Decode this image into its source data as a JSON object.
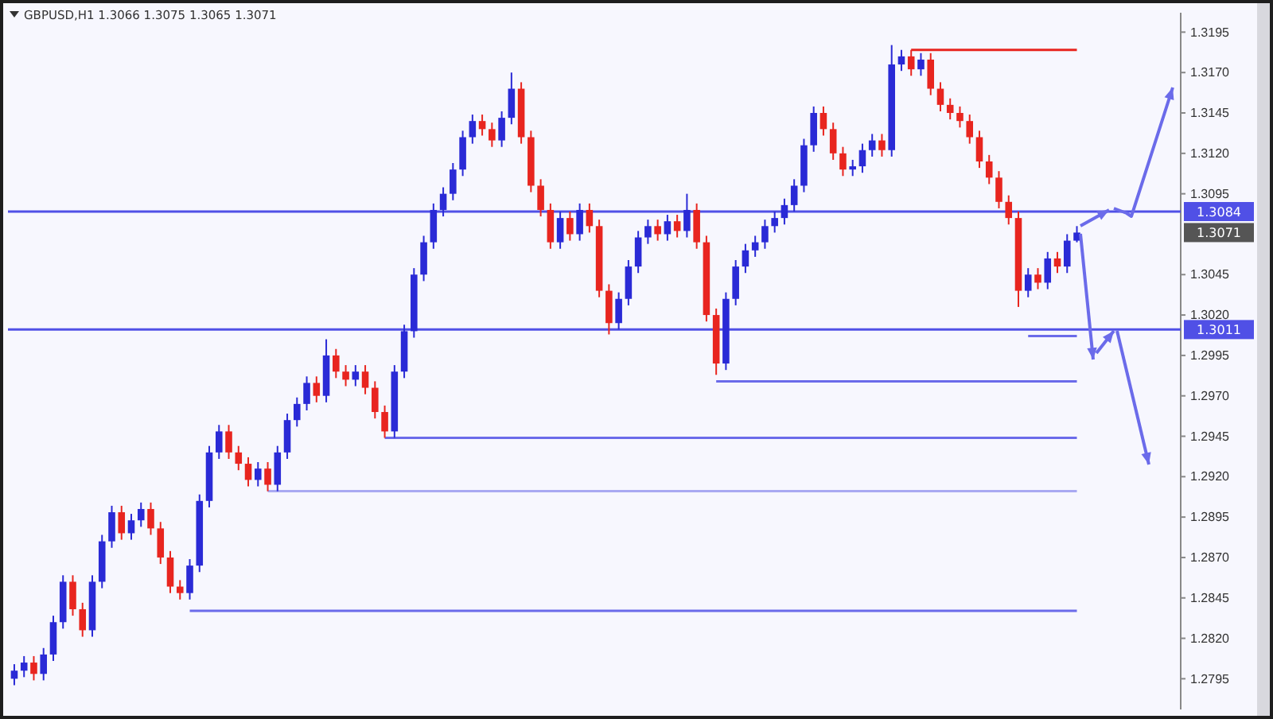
{
  "chart_data": {
    "type": "candlestick",
    "title": "GBPUSD,H1  1.3066 1.3075 1.3065 1.3071",
    "categories": [
      null,
      null,
      null,
      null,
      null,
      null,
      null,
      null,
      null,
      null,
      null,
      null,
      null,
      null,
      null,
      null,
      null,
      null,
      null,
      null,
      null,
      null,
      null,
      null,
      null,
      null,
      null,
      null,
      null,
      null,
      null,
      null,
      null,
      null,
      null,
      null,
      null,
      null,
      null,
      null,
      null,
      null,
      null,
      null,
      null,
      null,
      null,
      null,
      null,
      null,
      null,
      null,
      null,
      null,
      null,
      null,
      null,
      null,
      null,
      null,
      null,
      null,
      null,
      null,
      null,
      null,
      null,
      null,
      null,
      null,
      null,
      null,
      null,
      null,
      null,
      null,
      null,
      null,
      null,
      null,
      null,
      null,
      null,
      null,
      null,
      null,
      null,
      null,
      null,
      null,
      null,
      null,
      null,
      null,
      null,
      null,
      null,
      null,
      null,
      null,
      null,
      null,
      null,
      null,
      null,
      null,
      null,
      null,
      null,
      null,
      null,
      null,
      null,
      null,
      null,
      null,
      null,
      null,
      null,
      null
    ],
    "ohlc": [
      [
        1.2795,
        1.2804,
        1.2791,
        1.28
      ],
      [
        1.28,
        1.2809,
        1.2796,
        1.2805
      ],
      [
        1.2805,
        1.2809,
        1.2794,
        1.2798
      ],
      [
        1.2798,
        1.2814,
        1.2794,
        1.281
      ],
      [
        1.281,
        1.2834,
        1.2806,
        1.283
      ],
      [
        1.283,
        1.2859,
        1.2826,
        1.2855
      ],
      [
        1.2855,
        1.2859,
        1.2834,
        1.2838
      ],
      [
        1.2838,
        1.2842,
        1.2821,
        1.2825
      ],
      [
        1.2825,
        1.2859,
        1.2821,
        1.2855
      ],
      [
        1.2855,
        1.2884,
        1.2851,
        1.288
      ],
      [
        1.288,
        1.2902,
        1.2876,
        1.2898
      ],
      [
        1.2898,
        1.2902,
        1.2881,
        1.2885
      ],
      [
        1.2885,
        1.2897,
        1.2881,
        1.2893
      ],
      [
        1.2893,
        1.2904,
        1.2889,
        1.29
      ],
      [
        1.29,
        1.2904,
        1.2884,
        1.2888
      ],
      [
        1.2888,
        1.2892,
        1.2866,
        1.287
      ],
      [
        1.287,
        1.2874,
        1.2848,
        1.2852
      ],
      [
        1.2852,
        1.2856,
        1.2844,
        1.2848
      ],
      [
        1.2848,
        1.2869,
        1.2844,
        1.2865
      ],
      [
        1.2865,
        1.2909,
        1.2861,
        1.2905
      ],
      [
        1.2905,
        1.2939,
        1.2901,
        1.2935
      ],
      [
        1.2935,
        1.2952,
        1.2931,
        1.2948
      ],
      [
        1.2948,
        1.2952,
        1.2931,
        1.2935
      ],
      [
        1.2935,
        1.2939,
        1.2924,
        1.2928
      ],
      [
        1.2928,
        1.2932,
        1.2914,
        1.2918
      ],
      [
        1.2918,
        1.2929,
        1.2914,
        1.2925
      ],
      [
        1.2925,
        1.2929,
        1.2911,
        1.2915
      ],
      [
        1.2915,
        1.2939,
        1.2911,
        1.2935
      ],
      [
        1.2935,
        1.2959,
        1.2931,
        1.2955
      ],
      [
        1.2955,
        1.2969,
        1.2951,
        1.2965
      ],
      [
        1.2965,
        1.2982,
        1.2961,
        1.2978
      ],
      [
        1.2978,
        1.2982,
        1.2966,
        1.297
      ],
      [
        1.297,
        1.3005,
        1.2966,
        1.2995
      ],
      [
        1.2995,
        1.2999,
        1.2981,
        1.2985
      ],
      [
        1.2985,
        1.2989,
        1.2976,
        1.298
      ],
      [
        1.298,
        1.2989,
        1.2976,
        1.2985
      ],
      [
        1.2985,
        1.2989,
        1.2971,
        1.2975
      ],
      [
        1.2975,
        1.2979,
        1.2956,
        1.296
      ],
      [
        1.296,
        1.2964,
        1.2944,
        1.2948
      ],
      [
        1.2948,
        1.2989,
        1.2944,
        1.2985
      ],
      [
        1.2985,
        1.3014,
        1.2981,
        1.301
      ],
      [
        1.301,
        1.3049,
        1.3006,
        1.3045
      ],
      [
        1.3045,
        1.3069,
        1.3041,
        1.3065
      ],
      [
        1.3065,
        1.3089,
        1.3061,
        1.3085
      ],
      [
        1.3085,
        1.3099,
        1.3081,
        1.3095
      ],
      [
        1.3095,
        1.3114,
        1.3091,
        1.311
      ],
      [
        1.311,
        1.3134,
        1.3106,
        1.313
      ],
      [
        1.313,
        1.3144,
        1.3126,
        1.314
      ],
      [
        1.314,
        1.3144,
        1.3131,
        1.3135
      ],
      [
        1.3135,
        1.3139,
        1.3124,
        1.3128
      ],
      [
        1.3128,
        1.3146,
        1.3124,
        1.3142
      ],
      [
        1.3142,
        1.317,
        1.3138,
        1.316
      ],
      [
        1.316,
        1.3164,
        1.3126,
        1.313
      ],
      [
        1.313,
        1.3134,
        1.3096,
        1.31
      ],
      [
        1.31,
        1.3104,
        1.3081,
        1.3085
      ],
      [
        1.3085,
        1.3089,
        1.3061,
        1.3065
      ],
      [
        1.3065,
        1.3084,
        1.3061,
        1.308
      ],
      [
        1.308,
        1.3084,
        1.3066,
        1.307
      ],
      [
        1.307,
        1.3089,
        1.3066,
        1.3085
      ],
      [
        1.3085,
        1.3089,
        1.3071,
        1.3075
      ],
      [
        1.3075,
        1.3079,
        1.3031,
        1.3035
      ],
      [
        1.3035,
        1.3039,
        1.3008,
        1.3015
      ],
      [
        1.3015,
        1.3034,
        1.3011,
        1.303
      ],
      [
        1.303,
        1.3054,
        1.3026,
        1.305
      ],
      [
        1.305,
        1.3072,
        1.3046,
        1.3068
      ],
      [
        1.3068,
        1.3079,
        1.3064,
        1.3075
      ],
      [
        1.3075,
        1.3079,
        1.3066,
        1.307
      ],
      [
        1.307,
        1.3082,
        1.3066,
        1.3078
      ],
      [
        1.3078,
        1.3082,
        1.3068,
        1.3072
      ],
      [
        1.3072,
        1.3095,
        1.3068,
        1.3085
      ],
      [
        1.3085,
        1.3089,
        1.3061,
        1.3065
      ],
      [
        1.3065,
        1.3069,
        1.3016,
        1.302
      ],
      [
        1.302,
        1.3024,
        1.2983,
        1.299
      ],
      [
        1.299,
        1.3034,
        1.2986,
        1.303
      ],
      [
        1.303,
        1.3054,
        1.3026,
        1.305
      ],
      [
        1.305,
        1.3064,
        1.3046,
        1.306
      ],
      [
        1.306,
        1.3069,
        1.3056,
        1.3065
      ],
      [
        1.3065,
        1.3079,
        1.3061,
        1.3075
      ],
      [
        1.3075,
        1.3084,
        1.3071,
        1.308
      ],
      [
        1.308,
        1.3092,
        1.3076,
        1.3088
      ],
      [
        1.3088,
        1.3104,
        1.3084,
        1.31
      ],
      [
        1.31,
        1.3129,
        1.3096,
        1.3125
      ],
      [
        1.3125,
        1.3149,
        1.3121,
        1.3145
      ],
      [
        1.3145,
        1.3149,
        1.3131,
        1.3135
      ],
      [
        1.3135,
        1.3139,
        1.3116,
        1.312
      ],
      [
        1.312,
        1.3124,
        1.3106,
        1.311
      ],
      [
        1.311,
        1.3116,
        1.3106,
        1.3112
      ],
      [
        1.3112,
        1.3126,
        1.3108,
        1.3122
      ],
      [
        1.3122,
        1.3132,
        1.3118,
        1.3128
      ],
      [
        1.3128,
        1.3132,
        1.3118,
        1.3122
      ],
      [
        1.3122,
        1.3187,
        1.3118,
        1.3175
      ],
      [
        1.3175,
        1.3184,
        1.3171,
        1.318
      ],
      [
        1.318,
        1.3184,
        1.3168,
        1.3172
      ],
      [
        1.3172,
        1.3182,
        1.3168,
        1.3178
      ],
      [
        1.3178,
        1.3182,
        1.3156,
        1.316
      ],
      [
        1.316,
        1.3164,
        1.3146,
        1.315
      ],
      [
        1.315,
        1.3154,
        1.3141,
        1.3145
      ],
      [
        1.3145,
        1.3149,
        1.3136,
        1.314
      ],
      [
        1.314,
        1.3144,
        1.3126,
        1.313
      ],
      [
        1.313,
        1.3134,
        1.3111,
        1.3115
      ],
      [
        1.3115,
        1.3119,
        1.3101,
        1.3105
      ],
      [
        1.3105,
        1.3109,
        1.3086,
        1.309
      ],
      [
        1.309,
        1.3094,
        1.3076,
        1.308
      ],
      [
        1.308,
        1.3084,
        1.3025,
        1.3035
      ],
      [
        1.3035,
        1.3049,
        1.3031,
        1.3045
      ],
      [
        1.3045,
        1.3049,
        1.3036,
        1.304
      ],
      [
        1.304,
        1.3059,
        1.3036,
        1.3055
      ],
      [
        1.3055,
        1.3059,
        1.3046,
        1.305
      ],
      [
        1.305,
        1.307,
        1.3046,
        1.3066
      ],
      [
        1.3066,
        1.3075,
        1.3065,
        1.3071
      ],
      null,
      null,
      null,
      null,
      null,
      null,
      null,
      null,
      null,
      null
    ],
    "colors": [
      "#2a2ad6",
      "#2a2ad6",
      "#e8251f",
      "#2a2ad6",
      "#2a2ad6",
      "#2a2ad6",
      "#e8251f",
      "#e8251f",
      "#2a2ad6",
      "#2a2ad6",
      "#2a2ad6",
      "#e8251f",
      "#2a2ad6",
      "#2a2ad6",
      "#e8251f",
      "#e8251f",
      "#e8251f",
      "#e8251f",
      "#2a2ad6",
      "#2a2ad6",
      "#2a2ad6",
      "#2a2ad6",
      "#e8251f",
      "#e8251f",
      "#e8251f",
      "#2a2ad6",
      "#e8251f",
      "#2a2ad6",
      "#2a2ad6",
      "#2a2ad6",
      "#2a2ad6",
      "#e8251f",
      "#2a2ad6",
      "#e8251f",
      "#e8251f",
      "#2a2ad6",
      "#e8251f",
      "#e8251f",
      "#e8251f",
      "#2a2ad6",
      "#2a2ad6",
      "#2a2ad6",
      "#2a2ad6",
      "#2a2ad6",
      "#2a2ad6",
      "#2a2ad6",
      "#2a2ad6",
      "#2a2ad6",
      "#e8251f",
      "#e8251f",
      "#2a2ad6",
      "#2a2ad6",
      "#e8251f",
      "#e8251f",
      "#e8251f",
      "#e8251f",
      "#2a2ad6",
      "#e8251f",
      "#2a2ad6",
      "#e8251f",
      "#e8251f",
      "#e8251f",
      "#2a2ad6",
      "#2a2ad6",
      "#2a2ad6",
      "#2a2ad6",
      "#e8251f",
      "#2a2ad6",
      "#e8251f",
      "#2a2ad6",
      "#e8251f",
      "#e8251f",
      "#e8251f",
      "#2a2ad6",
      "#2a2ad6",
      "#2a2ad6",
      "#2a2ad6",
      "#2a2ad6",
      "#2a2ad6",
      "#2a2ad6",
      "#2a2ad6",
      "#2a2ad6",
      "#2a2ad6",
      "#e8251f",
      "#e8251f",
      "#e8251f",
      "#2a2ad6",
      "#2a2ad6",
      "#2a2ad6",
      "#e8251f",
      "#2a2ad6",
      "#2a2ad6",
      "#e8251f",
      "#2a2ad6",
      "#e8251f",
      "#e8251f",
      "#e8251f",
      "#e8251f",
      "#e8251f",
      "#e8251f",
      "#e8251f",
      "#e8251f",
      "#e8251f",
      "#e8251f",
      "#2a2ad6",
      "#e8251f",
      "#2a2ad6",
      "#e8251f",
      "#2a2ad6",
      "#2a2ad6",
      null,
      null,
      null,
      null,
      null,
      null,
      null,
      null,
      null,
      null
    ],
    "series": [
      {
        "type": "line",
        "color": "#e8251f",
        "values": [
          null,
          null,
          null,
          null,
          null,
          null,
          null,
          null,
          null,
          null,
          null,
          null,
          null,
          null,
          null,
          null,
          null,
          null,
          null,
          null,
          null,
          null,
          null,
          null,
          null,
          null,
          null,
          null,
          null,
          null,
          null,
          null,
          null,
          null,
          null,
          null,
          null,
          null,
          null,
          null,
          null,
          null,
          null,
          null,
          null,
          null,
          null,
          null,
          null,
          null,
          null,
          null,
          null,
          null,
          null,
          null,
          null,
          null,
          null,
          null,
          null,
          null,
          null,
          null,
          null,
          null,
          null,
          null,
          null,
          null,
          null,
          null,
          null,
          null,
          null,
          null,
          null,
          null,
          null,
          null,
          null,
          null,
          null,
          null,
          null,
          null,
          null,
          null,
          null,
          null,
          null,
          null,
          1.3184,
          1.3184,
          1.3184,
          1.3184,
          1.3184,
          1.3184,
          1.3184,
          1.3184,
          1.3184,
          1.3184,
          1.3184,
          1.3184,
          1.3184,
          1.3184,
          1.3184,
          1.3184,
          1.3184,
          1.3184,
          null,
          null,
          null,
          null,
          null,
          null,
          null,
          null,
          null,
          null
        ]
      },
      {
        "type": "line",
        "color": "#6b6bea",
        "values": [
          null,
          null,
          null,
          null,
          null,
          null,
          null,
          null,
          null,
          null,
          null,
          null,
          null,
          null,
          null,
          null,
          null,
          null,
          null,
          null,
          null,
          null,
          null,
          null,
          null,
          null,
          null,
          null,
          null,
          null,
          null,
          null,
          null,
          null,
          null,
          null,
          null,
          null,
          null,
          null,
          null,
          null,
          null,
          null,
          null,
          null,
          null,
          null,
          null,
          null,
          null,
          null,
          null,
          null,
          null,
          null,
          null,
          null,
          null,
          null,
          null,
          null,
          null,
          null,
          null,
          null,
          null,
          null,
          null,
          null,
          null,
          null,
          null,
          null,
          null,
          null,
          null,
          null,
          null,
          null,
          null,
          null,
          null,
          null,
          null,
          null,
          null,
          null,
          null,
          null,
          null,
          null,
          null,
          null,
          null,
          null,
          null,
          null,
          null,
          null,
          null,
          null,
          null,
          null,
          1.3007,
          1.3007,
          1.3007,
          1.3007,
          1.3007,
          1.3007,
          null,
          null,
          null,
          null,
          null,
          null,
          null,
          null,
          null,
          null
        ]
      },
      {
        "type": "line",
        "color": "#6b6bea",
        "values": [
          null,
          null,
          null,
          null,
          null,
          null,
          null,
          null,
          null,
          null,
          null,
          null,
          null,
          null,
          null,
          null,
          null,
          null,
          null,
          null,
          null,
          null,
          null,
          null,
          null,
          null,
          null,
          null,
          null,
          null,
          null,
          null,
          null,
          null,
          null,
          null,
          null,
          null,
          null,
          null,
          null,
          null,
          null,
          null,
          null,
          null,
          null,
          null,
          null,
          null,
          null,
          null,
          null,
          null,
          null,
          null,
          null,
          null,
          null,
          null,
          null,
          null,
          null,
          null,
          null,
          null,
          null,
          null,
          null,
          null,
          null,
          null,
          1.2979,
          1.2979,
          1.2979,
          1.2979,
          1.2979,
          1.2979,
          1.2979,
          1.2979,
          1.2979,
          1.2979,
          1.2979,
          1.2979,
          1.2979,
          1.2979,
          1.2979,
          1.2979,
          1.2979,
          1.2979,
          1.2979,
          1.2979,
          1.2979,
          1.2979,
          1.2979,
          1.2979,
          1.2979,
          1.2979,
          1.2979,
          1.2979,
          1.2979,
          1.2979,
          1.2979,
          1.2979,
          1.2979,
          1.2979,
          1.2979,
          1.2979,
          1.2979,
          1.2979,
          null,
          null,
          null,
          null,
          null,
          null,
          null,
          null,
          null,
          null
        ]
      },
      {
        "type": "line",
        "color": "#6b6bea",
        "values": [
          null,
          null,
          null,
          null,
          null,
          null,
          null,
          null,
          null,
          null,
          null,
          null,
          null,
          null,
          null,
          null,
          null,
          null,
          null,
          null,
          null,
          null,
          null,
          null,
          null,
          null,
          null,
          null,
          null,
          null,
          null,
          null,
          null,
          null,
          null,
          null,
          null,
          null,
          1.2944,
          1.2944,
          1.2944,
          1.2944,
          1.2944,
          1.2944,
          1.2944,
          1.2944,
          1.2944,
          1.2944,
          1.2944,
          1.2944,
          1.2944,
          1.2944,
          1.2944,
          1.2944,
          1.2944,
          1.2944,
          1.2944,
          1.2944,
          1.2944,
          1.2944,
          1.2944,
          1.2944,
          1.2944,
          1.2944,
          1.2944,
          1.2944,
          1.2944,
          1.2944,
          1.2944,
          1.2944,
          1.2944,
          1.2944,
          1.2944,
          1.2944,
          1.2944,
          1.2944,
          1.2944,
          1.2944,
          1.2944,
          1.2944,
          1.2944,
          1.2944,
          1.2944,
          1.2944,
          1.2944,
          1.2944,
          1.2944,
          1.2944,
          1.2944,
          1.2944,
          1.2944,
          1.2944,
          1.2944,
          1.2944,
          1.2944,
          1.2944,
          1.2944,
          1.2944,
          1.2944,
          1.2944,
          1.2944,
          1.2944,
          1.2944,
          1.2944,
          1.2944,
          1.2944,
          1.2944,
          1.2944,
          1.2944,
          1.2944,
          null,
          null,
          null,
          null,
          null,
          null,
          null,
          null,
          null,
          null
        ]
      },
      {
        "type": "line",
        "color": "#a9a9f2",
        "values": [
          null,
          null,
          null,
          null,
          null,
          null,
          null,
          null,
          null,
          null,
          null,
          null,
          null,
          null,
          null,
          null,
          null,
          null,
          null,
          null,
          null,
          null,
          null,
          null,
          null,
          null,
          1.2911,
          1.2911,
          1.2911,
          1.2911,
          1.2911,
          1.2911,
          1.2911,
          1.2911,
          1.2911,
          1.2911,
          1.2911,
          1.2911,
          1.2911,
          1.2911,
          1.2911,
          1.2911,
          1.2911,
          1.2911,
          1.2911,
          1.2911,
          1.2911,
          1.2911,
          1.2911,
          1.2911,
          1.2911,
          1.2911,
          1.2911,
          1.2911,
          1.2911,
          1.2911,
          1.2911,
          1.2911,
          1.2911,
          1.2911,
          1.2911,
          1.2911,
          1.2911,
          1.2911,
          1.2911,
          1.2911,
          1.2911,
          1.2911,
          1.2911,
          1.2911,
          1.2911,
          1.2911,
          1.2911,
          1.2911,
          1.2911,
          1.2911,
          1.2911,
          1.2911,
          1.2911,
          1.2911,
          1.2911,
          1.2911,
          1.2911,
          1.2911,
          1.2911,
          1.2911,
          1.2911,
          1.2911,
          1.2911,
          1.2911,
          1.2911,
          1.2911,
          1.2911,
          1.2911,
          1.2911,
          1.2911,
          1.2911,
          1.2911,
          1.2911,
          1.2911,
          1.2911,
          1.2911,
          1.2911,
          1.2911,
          1.2911,
          1.2911,
          1.2911,
          1.2911,
          1.2911,
          1.2911,
          null,
          null,
          null,
          null,
          null,
          null,
          null,
          null,
          null,
          null
        ]
      },
      {
        "type": "line",
        "color": "#6b6bea",
        "values": [
          null,
          null,
          null,
          null,
          null,
          null,
          null,
          null,
          null,
          null,
          null,
          null,
          null,
          null,
          null,
          null,
          null,
          null,
          1.2837,
          1.2837,
          1.2837,
          1.2837,
          1.2837,
          1.2837,
          1.2837,
          1.2837,
          1.2837,
          1.2837,
          1.2837,
          1.2837,
          1.2837,
          1.2837,
          1.2837,
          1.2837,
          1.2837,
          1.2837,
          1.2837,
          1.2837,
          1.2837,
          1.2837,
          1.2837,
          1.2837,
          1.2837,
          1.2837,
          1.2837,
          1.2837,
          1.2837,
          1.2837,
          1.2837,
          1.2837,
          1.2837,
          1.2837,
          1.2837,
          1.2837,
          1.2837,
          1.2837,
          1.2837,
          1.2837,
          1.2837,
          1.2837,
          1.2837,
          1.2837,
          1.2837,
          1.2837,
          1.2837,
          1.2837,
          1.2837,
          1.2837,
          1.2837,
          1.2837,
          1.2837,
          1.2837,
          1.2837,
          1.2837,
          1.2837,
          1.2837,
          1.2837,
          1.2837,
          1.2837,
          1.2837,
          1.2837,
          1.2837,
          1.2837,
          1.2837,
          1.2837,
          1.2837,
          1.2837,
          1.2837,
          1.2837,
          1.2837,
          1.2837,
          1.2837,
          1.2837,
          1.2837,
          1.2837,
          1.2837,
          1.2837,
          1.2837,
          1.2837,
          1.2837,
          1.2837,
          1.2837,
          1.2837,
          1.2837,
          1.2837,
          1.2837,
          1.2837,
          1.2837,
          1.2837,
          1.2837,
          null,
          null,
          null,
          null,
          null,
          null,
          null,
          null,
          null,
          null
        ]
      }
    ],
    "ylim": [
      1.2776,
      1.3207
    ],
    "yticks": [
      {
        "value": 1.2795,
        "label": "1.2795"
      },
      {
        "value": 1.282,
        "label": "1.2820"
      },
      {
        "value": 1.2845,
        "label": "1.2845"
      },
      {
        "value": 1.287,
        "label": "1.2870"
      },
      {
        "value": 1.2895,
        "label": "1.2895"
      },
      {
        "value": 1.292,
        "label": "1.2920"
      },
      {
        "value": 1.2945,
        "label": "1.2945"
      },
      {
        "value": 1.297,
        "label": "1.2970"
      },
      {
        "value": 1.2995,
        "label": "1.2995"
      },
      {
        "value": 1.302,
        "label": "1.3020"
      },
      {
        "value": 1.3045,
        "label": "1.3045"
      },
      {
        "value": 1.3095,
        "label": "1.3095"
      },
      {
        "value": 1.312,
        "label": "1.3120"
      },
      {
        "value": 1.3145,
        "label": "1.3145"
      },
      {
        "value": 1.317,
        "label": "1.3170"
      },
      {
        "value": 1.3195,
        "label": "1.3195"
      }
    ],
    "tick_labels": "y",
    "ref_lines": [
      {
        "axis": "y",
        "value": 1.3084,
        "label": "1.3084",
        "color": "#5050e6"
      },
      {
        "axis": "y",
        "value": 1.3011,
        "label": "1.3011",
        "color": "#5050e6"
      }
    ],
    "annotations": [
      "1.3071"
    ],
    "grid": false
  }
}
